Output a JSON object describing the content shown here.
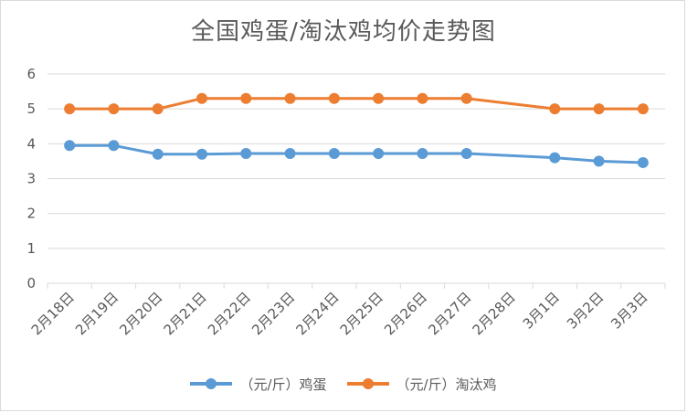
{
  "chart_data": {
    "type": "line",
    "title": "全国鸡蛋/淘汰鸡均价走势图",
    "categories": [
      "2月18日",
      "2月19日",
      "2月20日",
      "2月21日",
      "2月22日",
      "2月23日",
      "2月24日",
      "2月25日",
      "2月26日",
      "2月27日",
      "2月28日",
      "3月1日",
      "3月2日",
      "3月3日"
    ],
    "ylim": [
      0,
      6
    ],
    "yticks": [
      "0",
      "1",
      "2",
      "3",
      "4",
      "5",
      "6"
    ],
    "grid": true,
    "legend": "bottom",
    "series": [
      {
        "name": "（元/斤）鸡蛋",
        "color": "#5b9bd5",
        "values": [
          3.95,
          3.95,
          3.7,
          3.7,
          3.72,
          3.72,
          3.72,
          3.72,
          3.72,
          3.72,
          null,
          3.6,
          3.5,
          3.46
        ]
      },
      {
        "name": "（元/斤）淘汰鸡",
        "color": "#ed7d31",
        "values": [
          5.0,
          5.0,
          5.0,
          5.3,
          5.3,
          5.3,
          5.3,
          5.3,
          5.3,
          5.3,
          null,
          5.0,
          5.0,
          5.0
        ]
      }
    ]
  }
}
